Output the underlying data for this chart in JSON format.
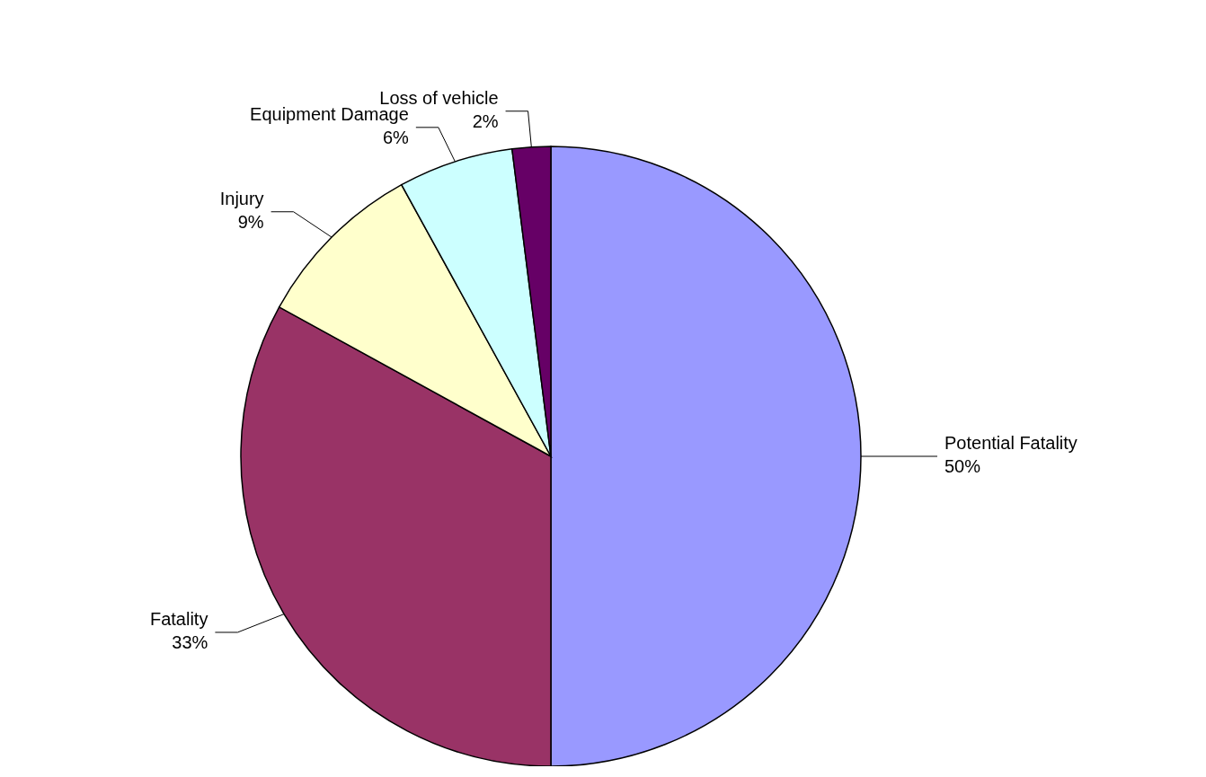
{
  "chart_data": {
    "type": "pie",
    "categories": [
      "Potential Fatality",
      "Fatality",
      "Injury",
      "Equipment Damage",
      "Loss of vehicle"
    ],
    "values": [
      50,
      33,
      9,
      6,
      2
    ],
    "colors": [
      "#9999ff",
      "#993366",
      "#ffffcc",
      "#ccffff",
      "#660066"
    ],
    "value_labels": [
      "50%",
      "33%",
      "9%",
      "6%",
      "2%"
    ],
    "legend": false
  }
}
